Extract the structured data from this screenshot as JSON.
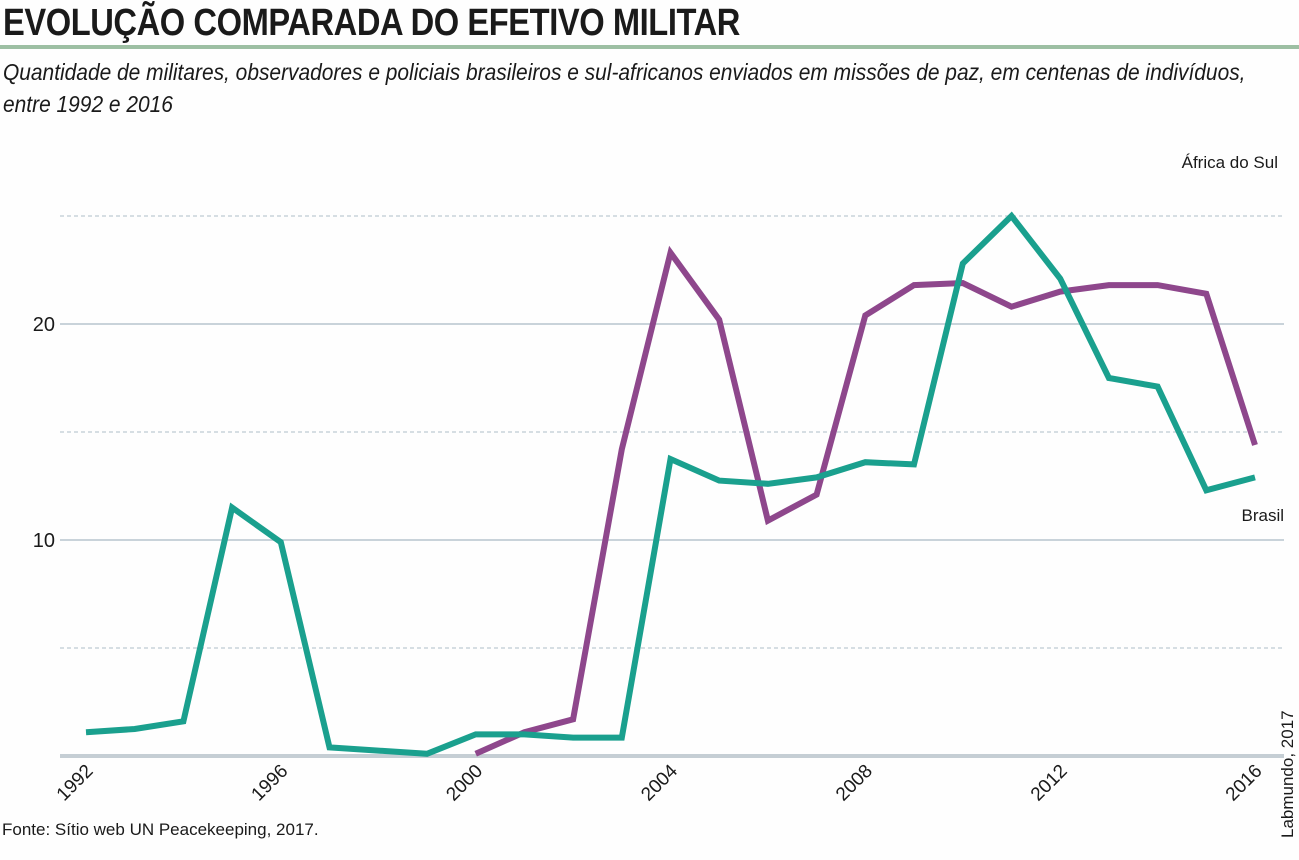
{
  "header": {
    "title": "EVOLUÇÃO COMPARADA DO EFETIVO MILITAR",
    "subtitle": "Quantidade de militares, observadores e policiais brasileiros e sul-africanos enviados em missões de paz, em centenas de indivíduos, entre 1992 e 2016"
  },
  "footer": {
    "source": "Fonte: Sítio web UN Peacekeeping, 2017.",
    "credit": "Labmundo, 2017"
  },
  "chart_data": {
    "type": "line",
    "title": "EVOLUÇÃO COMPARADA DO EFETIVO MILITAR",
    "xlabel": "",
    "ylabel": "",
    "x": [
      1992,
      1993,
      1994,
      1995,
      1996,
      1997,
      1998,
      1999,
      2000,
      2001,
      2002,
      2003,
      2004,
      2005,
      2006,
      2007,
      2008,
      2009,
      2010,
      2011,
      2012,
      2013,
      2014,
      2015,
      2016
    ],
    "xlim": [
      1992,
      2016
    ],
    "ylim": [
      0,
      25
    ],
    "x_ticks": [
      "1992",
      "1996",
      "2000",
      "2004",
      "2008",
      "2012",
      "2016"
    ],
    "y_ticks": [
      "10",
      "20"
    ],
    "grid": true,
    "series": [
      {
        "name": "Brasil",
        "color": "#1aa08e",
        "values": [
          1.1,
          1.25,
          1.6,
          11.5,
          9.9,
          0.4,
          0.25,
          0.1,
          1.0,
          1.0,
          0.85,
          0.85,
          13.75,
          12.75,
          12.6,
          12.9,
          13.6,
          13.5,
          22.8,
          25.0,
          22.1,
          17.5,
          17.1,
          12.3,
          12.9
        ]
      },
      {
        "name": "África do Sul",
        "color": "#8e478c",
        "values": [
          null,
          null,
          null,
          null,
          null,
          null,
          null,
          null,
          0.1,
          1.1,
          1.7,
          14.2,
          23.3,
          20.2,
          10.9,
          12.1,
          20.4,
          21.8,
          21.9,
          20.8,
          21.5,
          21.8,
          21.8,
          21.4,
          14.4
        ]
      }
    ]
  }
}
